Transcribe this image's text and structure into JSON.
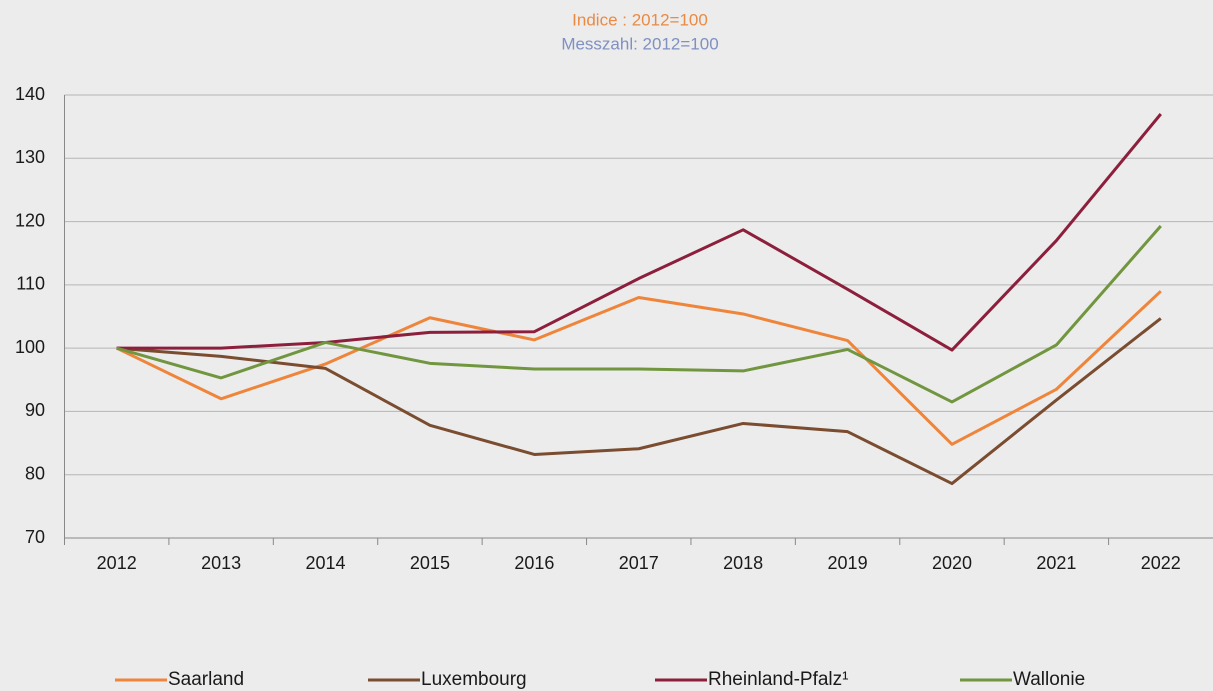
{
  "chart_data": {
    "type": "line",
    "title": "Indice : 2012=100",
    "subtitle": "Messzahl: 2012=100",
    "title_color": "#ea8a43",
    "subtitle_color": "#7f90c2",
    "categories": [
      "2012",
      "2013",
      "2014",
      "2015",
      "2016",
      "2017",
      "2018",
      "2019",
      "2020",
      "2021",
      "2022"
    ],
    "series": [
      {
        "name": "Saarland",
        "color": "#ee853a",
        "values": [
          100,
          92,
          97.5,
          104.8,
          101.3,
          108,
          105.4,
          101.2,
          84.8,
          93.5,
          109
        ]
      },
      {
        "name": "Luxembourg",
        "color": "#7a4c30",
        "values": [
          100,
          98.7,
          96.8,
          87.8,
          83.2,
          84.1,
          88.1,
          86.8,
          78.6,
          91.8,
          104.7
        ]
      },
      {
        "name": "Rheinland-Pfalz¹",
        "color": "#8c1f3c",
        "values": [
          100,
          100,
          100.9,
          102.5,
          102.6,
          111,
          118.7,
          109.3,
          99.7,
          117,
          137
        ]
      },
      {
        "name": "Wallonie",
        "color": "#71963f",
        "values": [
          100,
          95.3,
          100.9,
          97.6,
          96.7,
          96.7,
          96.4,
          99.8,
          91.5,
          100.5,
          119.3
        ]
      }
    ],
    "ylim": [
      70,
      140
    ],
    "yticks": [
      70,
      80,
      90,
      100,
      110,
      120,
      130,
      140
    ],
    "grid": true,
    "legend": "bottom"
  }
}
